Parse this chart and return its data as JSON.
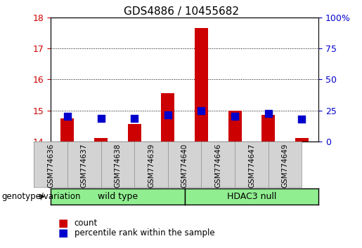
{
  "title": "GDS4886 / 10455682",
  "samples": [
    "GSM774636",
    "GSM774637",
    "GSM774638",
    "GSM774639",
    "GSM774640",
    "GSM774646",
    "GSM774647",
    "GSM774649"
  ],
  "red_bar_tops": [
    14.75,
    14.1,
    14.55,
    15.55,
    17.65,
    15.0,
    14.85,
    14.1
  ],
  "blue_square_vals_pct": [
    20.0,
    18.5,
    18.5,
    21.5,
    24.5,
    20.0,
    22.5,
    18.0
  ],
  "red_bar_base": 14.0,
  "ylim_left": [
    14.0,
    18.0
  ],
  "ylim_right": [
    0,
    100
  ],
  "yticks_left": [
    14,
    15,
    16,
    17,
    18
  ],
  "yticks_right": [
    0,
    25,
    50,
    75,
    100
  ],
  "bar_color": "#cc0000",
  "blue_color": "#0000cc",
  "blue_square_size": 50,
  "tick_label_color_left": "#cc0000",
  "tick_label_color_right": "#0000cc",
  "legend_count_label": "count",
  "legend_pct_label": "percentile rank within the sample",
  "bar_width": 0.4,
  "group_label": "genotype/variation",
  "wt_label": "wild type",
  "hdac_label": "HDAC3 null",
  "green_color": "#90EE90",
  "gray_box_color": "#d3d3d3"
}
